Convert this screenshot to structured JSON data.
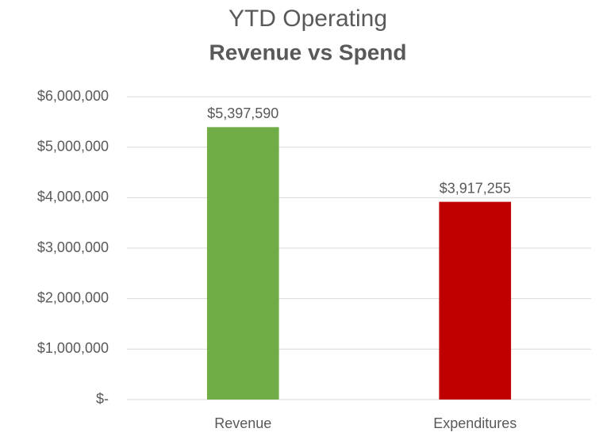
{
  "chart_data": {
    "type": "bar",
    "title": "YTD Operating",
    "subtitle": "Revenue vs Spend",
    "categories": [
      "Revenue",
      "Expenditures"
    ],
    "values": [
      5397590,
      3917255
    ],
    "value_labels": [
      "$5,397,590",
      "$3,917,255"
    ],
    "colors": [
      "#70ad47",
      "#c00000"
    ],
    "ylim": [
      0,
      6000000
    ],
    "yticks": [
      {
        "value": 0,
        "label": "$-"
      },
      {
        "value": 1000000,
        "label": "$1,000,000"
      },
      {
        "value": 2000000,
        "label": "$2,000,000"
      },
      {
        "value": 3000000,
        "label": "$3,000,000"
      },
      {
        "value": 4000000,
        "label": "$4,000,000"
      },
      {
        "value": 5000000,
        "label": "$5,000,000"
      },
      {
        "value": 6000000,
        "label": "$6,000,000"
      }
    ],
    "grid": true
  }
}
